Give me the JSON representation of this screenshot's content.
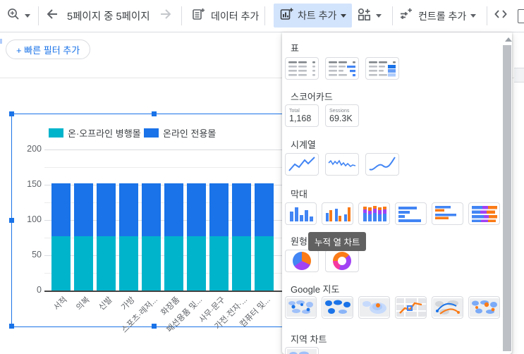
{
  "toolbar": {
    "page_indicator": "5페이지 중 5페이지",
    "add_data_label": "데이터 추가",
    "add_chart_label": "차트 추가",
    "add_control_label": "컨트롤 추가"
  },
  "filter_bar": {
    "quick_filter_label": "+ 빠른 필터 추가"
  },
  "chart_picker": {
    "sections": {
      "table": "표",
      "scorecard": "스코어카드",
      "time_series": "시계열",
      "bar": "막대",
      "pie": "원형",
      "google_maps": "Google 지도",
      "geo_chart": "지역 차트"
    },
    "scorecards": [
      {
        "label": "Total",
        "value": "1,168"
      },
      {
        "label": "Sessions",
        "value": "69.3K"
      }
    ],
    "tooltip": "누적 열 차트"
  },
  "chart_data": {
    "type": "bar",
    "stacked": true,
    "categories": [
      "서적",
      "의복",
      "신발",
      "가방",
      "스포츠·레저...",
      "화장품",
      "패션용품 및...",
      "사무·문구",
      "가전·전자·...",
      "컴퓨터 및..."
    ],
    "series": [
      {
        "name": "온·오프라인 병행몰",
        "color": "#00b4cc",
        "values": [
          77,
          77,
          77,
          77,
          77,
          77,
          77,
          77,
          77,
          77
        ]
      },
      {
        "name": "온라인 전용몰",
        "color": "#1a73e8",
        "values": [
          75,
          75,
          75,
          75,
          75,
          75,
          75,
          75,
          75,
          75
        ]
      }
    ],
    "yticks": [
      200,
      150,
      100,
      50,
      0
    ],
    "yticks_minor": [
      175,
      125,
      75,
      25
    ],
    "ylim": [
      0,
      225
    ],
    "grid": true,
    "legend_position": "top"
  },
  "colors": {
    "accent": "#1a73e8",
    "active_button_bg": "#d2e3fc",
    "tooltip_bg": "#616161",
    "icon_gray": "#5f6368"
  }
}
